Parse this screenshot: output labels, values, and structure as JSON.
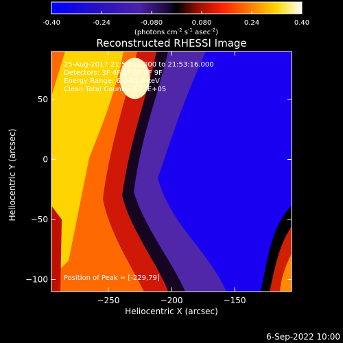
{
  "colorbar": {
    "ticks": [
      "-0.40",
      "-0.24",
      "-0.080",
      "0.080",
      "0.24",
      "0.40"
    ],
    "tick_values": [
      -0.4,
      -0.24,
      -0.08,
      0.08,
      0.24,
      0.4
    ],
    "range": [
      -0.4,
      0.4
    ],
    "unit_main": "(photons cm",
    "unit_sup1": "-2",
    "unit_mid1": " s",
    "unit_sup2": "-1",
    "unit_mid2": " asec",
    "unit_sup3": "-2",
    "unit_end": ")"
  },
  "annotations": {
    "line1": "25-Aug-2017 21:53:12.000 to 21:53:16.000",
    "line2": "Detectors: 3F 4F 5F 6F 8F 9F",
    "line3": "Energy Range: 6.0-10.0 keV",
    "line4": "Clean    Total Counts: 2.77E+05",
    "peak": "Position of Peak = [-229,79]"
  },
  "footer": {
    "date": "6-Sep-2022 10:00"
  },
  "colors": {
    "background": "#000000",
    "colormap": [
      "#0000ff",
      "#3a1ab0",
      "#5a2aa0",
      "#000000",
      "#a01010",
      "#ff2000",
      "#ff7a00",
      "#ffd000",
      "#ffffff"
    ]
  },
  "chart_data": {
    "type": "heatmap",
    "title": "Reconstructed RHESSI Image",
    "xlabel": "Heliocentric X (arcsec)",
    "ylabel": "Heliocentric Y (arcsec)",
    "xlim": [
      -295,
      -105
    ],
    "ylim": [
      -110,
      90
    ],
    "xticks": [
      -250,
      -200,
      -150
    ],
    "yticks": [
      -100,
      -50,
      0,
      50
    ],
    "xtick_labels": [
      "−250",
      "−200",
      "−150"
    ],
    "ytick_labels": [
      "−100",
      "−50",
      "0",
      "50"
    ],
    "peak": {
      "x": -229,
      "y": 79
    },
    "value_range": [
      -0.4,
      0.4
    ]
  }
}
